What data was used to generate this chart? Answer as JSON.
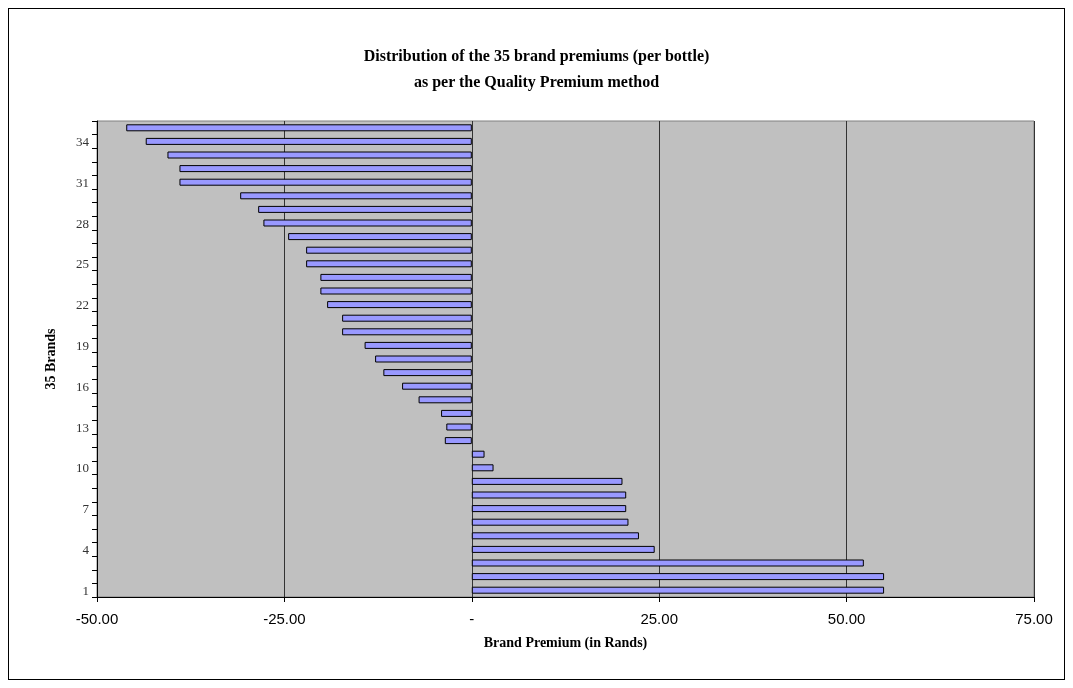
{
  "chart_data": {
    "type": "bar",
    "orientation": "horizontal",
    "title": "Distribution of the 35 brand premiums (per bottle)\nas per the Quality Premium method",
    "xlabel": "Brand Premium (in Rands)",
    "ylabel": "35 Brands",
    "categories": [
      null,
      "34",
      null,
      null,
      "31",
      null,
      null,
      "28",
      null,
      null,
      "25",
      null,
      null,
      "22",
      null,
      null,
      "19",
      null,
      null,
      "16",
      null,
      null,
      "13",
      null,
      null,
      "10",
      null,
      null,
      "7",
      null,
      null,
      "4",
      null,
      null,
      "1"
    ],
    "values": [
      -46.1,
      -43.5,
      -40.6,
      -39.0,
      -39.0,
      -30.9,
      -28.5,
      -27.8,
      -24.5,
      -22.1,
      -22.1,
      -20.2,
      -20.2,
      -19.3,
      -17.3,
      -17.3,
      -14.3,
      -12.9,
      -11.8,
      -9.3,
      -7.1,
      -4.1,
      -3.4,
      -3.6,
      1.7,
      2.9,
      20.1,
      20.6,
      20.6,
      20.9,
      22.3,
      24.4,
      52.3,
      55.0,
      55.0
    ],
    "color": "#9999ff",
    "xlim": [
      -50,
      75
    ],
    "xticks": [
      {
        "value": -50,
        "label": "-50.00"
      },
      {
        "value": -25,
        "label": "-25.00"
      },
      {
        "value": 0,
        "label": "-"
      },
      {
        "value": 25,
        "label": "25.00"
      },
      {
        "value": 50,
        "label": "50.00"
      },
      {
        "value": 75,
        "label": "75.00"
      }
    ],
    "grid": "x"
  }
}
